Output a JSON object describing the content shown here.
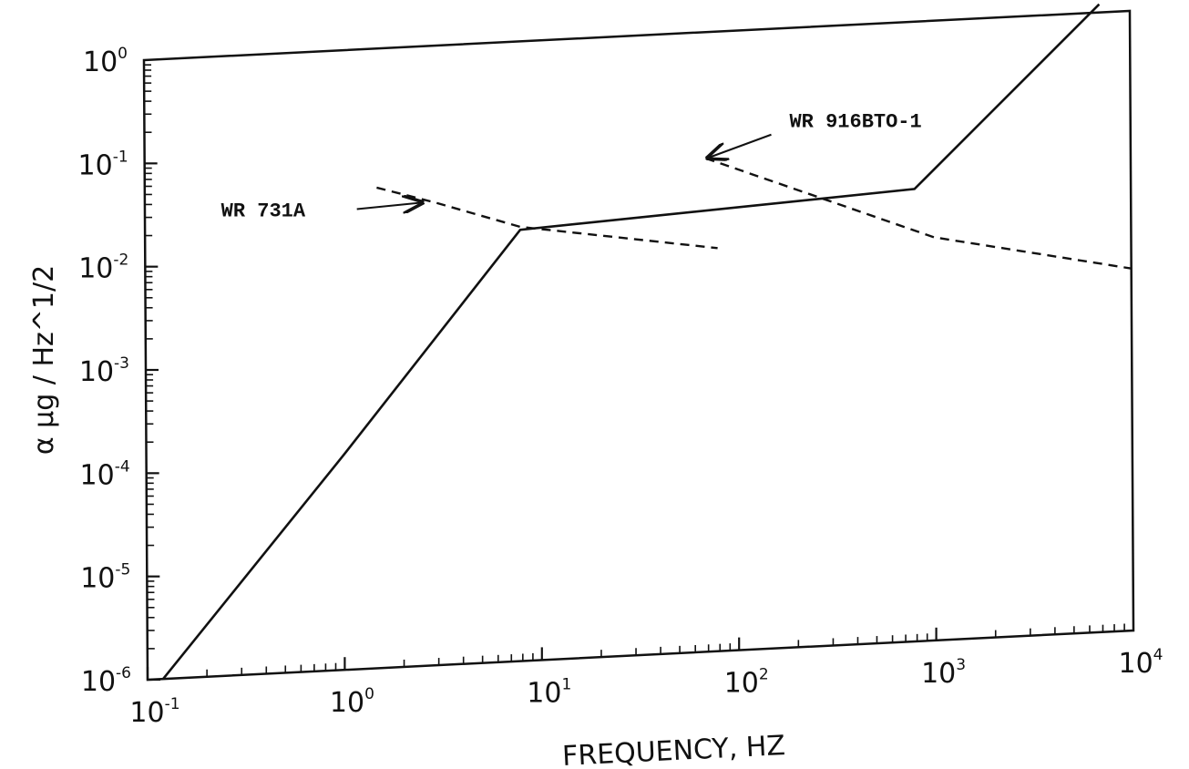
{
  "chart_data": {
    "type": "line",
    "title": "",
    "xlabel": "FREQUENCY, HZ",
    "ylabel": "α  μg / Hz^1/2",
    "x_scale": "log",
    "y_scale": "log",
    "xlim": [
      0.1,
      10000
    ],
    "ylim": [
      1e-06,
      1
    ],
    "grid": false,
    "x_ticks": [
      {
        "base": "10",
        "exp": "-1"
      },
      {
        "base": "10",
        "exp": "0"
      },
      {
        "base": "10",
        "exp": "1"
      },
      {
        "base": "10",
        "exp": "2"
      },
      {
        "base": "10",
        "exp": "3"
      },
      {
        "base": "10",
        "exp": "4"
      }
    ],
    "y_ticks": [
      {
        "base": "10",
        "exp": "-6"
      },
      {
        "base": "10",
        "exp": "-5"
      },
      {
        "base": "10",
        "exp": "-4"
      },
      {
        "base": "10",
        "exp": "-3"
      },
      {
        "base": "10",
        "exp": "-2"
      },
      {
        "base": "10",
        "exp": "-1"
      },
      {
        "base": "10",
        "exp": "0"
      }
    ],
    "series": [
      {
        "style": "solid",
        "x": [
          0.12,
          1,
          8,
          800,
          7000
        ],
        "y": [
          1e-06,
          0.00012,
          0.015,
          0.024,
          1.2
        ]
      },
      {
        "name": "WR 731A",
        "style": "dashed",
        "x": [
          1.5,
          3,
          8,
          80
        ],
        "y": [
          0.045,
          0.03,
          0.016,
          0.008
        ]
      },
      {
        "name": "WR 916BTO-1",
        "style": "dashed",
        "x": [
          70,
          300,
          1000,
          10000
        ],
        "y": [
          0.06,
          0.02,
          0.008,
          0.0032
        ]
      }
    ],
    "annotations": [
      {
        "text": "WR 731A",
        "points_to": "WR 731A"
      },
      {
        "text": "WR 916BTO-1",
        "points_to": "WR 916BTO-1"
      }
    ],
    "colors": {
      "ink": "#111111",
      "background": "#ffffff"
    }
  }
}
